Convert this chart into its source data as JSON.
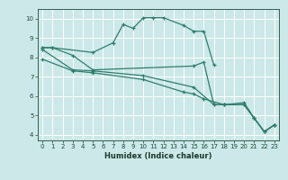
{
  "xlabel": "Humidex (Indice chaleur)",
  "bg_color": "#cce8e8",
  "grid_color": "#ffffff",
  "line_color": "#2e7d6e",
  "xlim": [
    -0.5,
    23.5
  ],
  "ylim": [
    3.7,
    10.5
  ],
  "xticks": [
    0,
    1,
    2,
    3,
    4,
    5,
    6,
    7,
    8,
    9,
    10,
    11,
    12,
    13,
    14,
    15,
    16,
    17,
    18,
    19,
    20,
    21,
    22,
    23
  ],
  "yticks": [
    4,
    5,
    6,
    7,
    8,
    9,
    10
  ],
  "curves": [
    {
      "x": [
        0,
        1,
        5,
        7,
        8,
        9,
        10,
        11,
        12,
        14,
        15,
        16,
        17
      ],
      "y": [
        8.5,
        8.5,
        8.25,
        8.75,
        9.7,
        9.5,
        10.05,
        10.05,
        10.05,
        9.65,
        9.35,
        9.35,
        7.6
      ]
    },
    {
      "x": [
        0,
        1,
        3,
        5,
        15,
        16,
        17,
        18,
        20,
        21,
        22,
        23
      ],
      "y": [
        8.5,
        8.5,
        8.1,
        7.35,
        7.55,
        7.75,
        5.55,
        5.55,
        5.55,
        4.85,
        4.15,
        4.5
      ]
    },
    {
      "x": [
        0,
        3,
        5,
        10,
        15,
        17,
        18,
        20,
        21,
        22,
        23
      ],
      "y": [
        8.4,
        7.35,
        7.3,
        7.05,
        6.45,
        5.55,
        5.55,
        5.65,
        4.85,
        4.15,
        4.5
      ]
    },
    {
      "x": [
        0,
        3,
        5,
        10,
        14,
        15,
        16,
        18,
        20,
        21,
        22,
        23
      ],
      "y": [
        7.9,
        7.3,
        7.2,
        6.85,
        6.2,
        6.1,
        5.85,
        5.55,
        5.55,
        4.85,
        4.15,
        4.5
      ]
    }
  ]
}
